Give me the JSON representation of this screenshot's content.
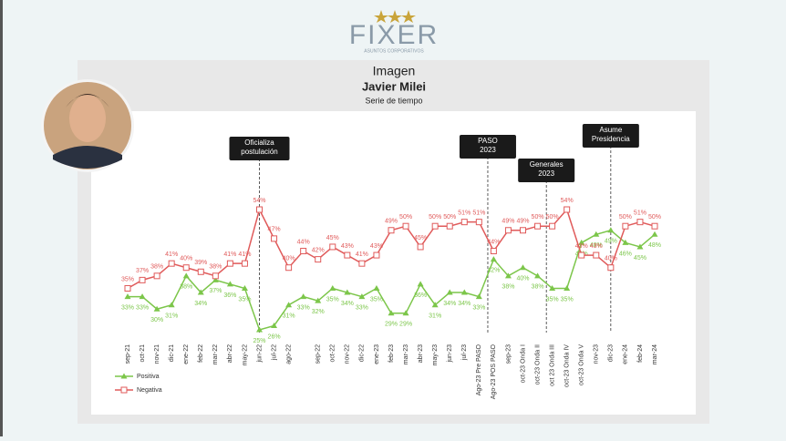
{
  "header": {
    "logo": "FIXER",
    "logo_sub": "ASUNTOS CORPORATIVOS"
  },
  "chart_data": {
    "type": "line",
    "title": "Imagen",
    "subtitle": "Javier Milei",
    "caption": "Serie de tiempo",
    "categories": [
      "sep-21",
      "oct-21",
      "nov-21",
      "dic-21",
      "ene-22",
      "feb-22",
      "mar-22",
      "abr-22",
      "may-22",
      "jun-22",
      "jul-22",
      "ago-22",
      null,
      "sep-22",
      "oct-22",
      "nov-22",
      "dic-22",
      "ene-23",
      "feb-23",
      "mar-23",
      "abr-23",
      "may-23",
      "jun-23",
      "jul-23",
      "Ago-23 Pre PASO",
      "Ago-23 POS PASO",
      "sep-23",
      "oct-23 Onda I",
      "oct-23 Onda II",
      "oct 23 Onda III",
      "oct-23 Onda IV",
      "oct-23 Onda V",
      "nov-23",
      "dic-23",
      "ene-24",
      "feb-24",
      "mar-24"
    ],
    "series": [
      {
        "name": "Positiva",
        "color": "#7cc64a",
        "marker": "triangle",
        "values": [
          33,
          33,
          30,
          31,
          38,
          34,
          37,
          36,
          35,
          25,
          26,
          31,
          33,
          32,
          35,
          34,
          33,
          35,
          29,
          29,
          36,
          31,
          34,
          34,
          33,
          42,
          38,
          40,
          38,
          35,
          35,
          46,
          48,
          49,
          46,
          45,
          48
        ],
        "value_labels": [
          "33%",
          "33%",
          "30%",
          "31%",
          "38%",
          "34%",
          "37%",
          "36%",
          "35%",
          "25%",
          "26%",
          "31%",
          "33%",
          "32%",
          "35%",
          "34%",
          "33%",
          "35%",
          "29%",
          "29%",
          "36%",
          "31%",
          "34%",
          "34%",
          "33%",
          "42%",
          "38%",
          "40%",
          "38%",
          "35%",
          "35%",
          "46%",
          "48%",
          "49%",
          "46%",
          "45%",
          "48%"
        ]
      },
      {
        "name": "Negativa",
        "color": "#e05a5a",
        "marker": "square",
        "values": [
          35,
          37,
          38,
          41,
          40,
          39,
          38,
          41,
          41,
          54,
          47,
          40,
          44,
          42,
          45,
          43,
          41,
          43,
          49,
          50,
          45,
          50,
          50,
          51,
          51,
          44,
          49,
          49,
          50,
          50,
          54,
          43,
          43,
          40,
          50,
          51,
          50
        ],
        "value_labels": [
          "35%",
          "37%",
          "38%",
          "41%",
          "40%",
          "39%",
          "38%",
          "41%",
          "41%",
          "54%",
          "47%",
          "40%",
          "44%",
          "42%",
          "45%",
          "43%",
          "41%",
          "43%",
          "49%",
          "50%",
          "45%",
          "50%",
          "50%",
          "51%",
          "51%",
          "44%",
          "49%",
          "49%",
          "50%",
          "50%",
          "54%",
          "43%",
          "43%",
          "40%",
          "50%",
          "51%",
          "50%"
        ]
      }
    ],
    "annotations": [
      "Oficializa postulación",
      "PASO 2023",
      "Generales 2023",
      "Asume Presidencia"
    ]
  }
}
